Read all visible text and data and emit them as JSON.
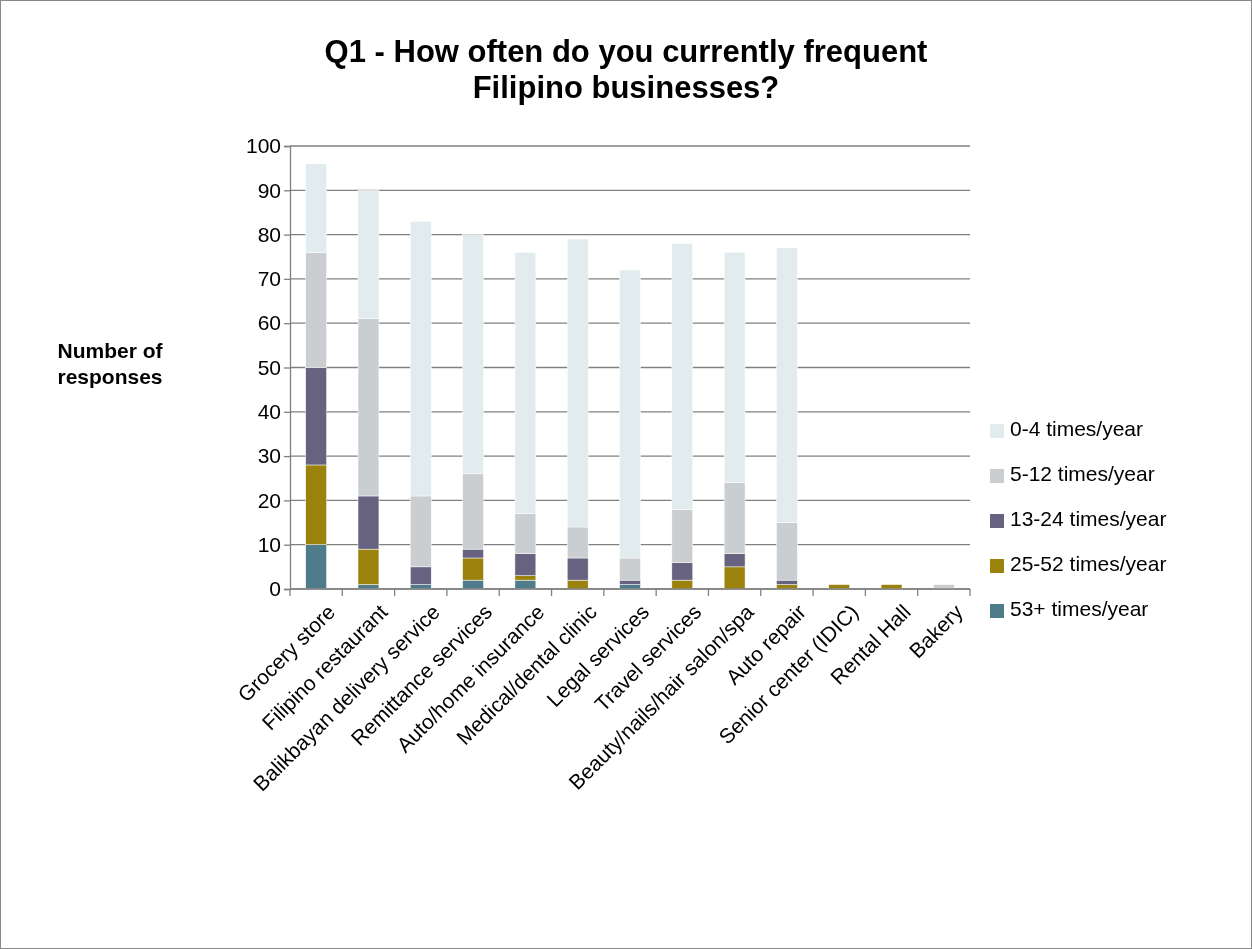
{
  "chart_data": {
    "type": "bar",
    "title": "Q1 - How often do you currently frequent Filipino businesses?",
    "ylabel": "Number of responses",
    "stacked": true,
    "grid": "y",
    "legend": "right",
    "categories": [
      "Grocery store",
      "Filipino restaurant",
      "Balikbayan delivery service",
      "Remittance services",
      "Auto/home insurance",
      "Medical/dental clinic",
      "Legal services",
      "Travel services",
      "Beauty/nails/hair salon/spa",
      "Auto repair",
      "Senior center (IDIC)",
      "Rental Hall",
      "Bakery"
    ],
    "ylim": [
      0,
      100
    ],
    "yticks": [
      0,
      10,
      20,
      30,
      40,
      50,
      60,
      70,
      80,
      90,
      100
    ],
    "series": [
      {
        "name": "53+ times/year",
        "color": "#4e7c8a",
        "values": [
          10,
          1,
          1,
          2,
          2,
          0,
          1,
          0,
          0,
          0,
          0,
          0,
          0
        ]
      },
      {
        "name": "25-52 times/year",
        "color": "#9a820d",
        "values": [
          18,
          8,
          0,
          5,
          1,
          2,
          0,
          2,
          5,
          1,
          1,
          1,
          0
        ]
      },
      {
        "name": "13-24 times/year",
        "color": "#67627f",
        "values": [
          22,
          12,
          4,
          2,
          5,
          5,
          1,
          4,
          3,
          1,
          0,
          0,
          0
        ]
      },
      {
        "name": "5-12 times/year",
        "color": "#cbced1",
        "values": [
          26,
          40,
          16,
          17,
          9,
          7,
          5,
          12,
          16,
          13,
          0,
          0,
          1
        ]
      },
      {
        "name": "0-4 times/year",
        "color": "#e2ebee",
        "values": [
          20,
          29,
          62,
          54,
          59,
          65,
          65,
          60,
          52,
          62,
          0,
          0,
          0
        ]
      }
    ]
  }
}
